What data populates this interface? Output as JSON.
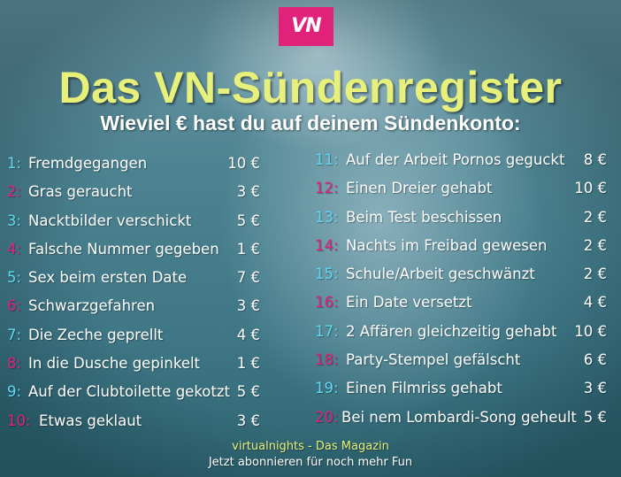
{
  "logo": "VN",
  "title": "Das VN-Sündenregister",
  "subtitle": "Wieviel € hast du auf deinem Sündenkonto:",
  "left_items": [
    {
      "num": "1:",
      "label": "Fremdgegangen",
      "amount": "10 €",
      "num_color": "blue"
    },
    {
      "num": "2:",
      "label": "Gras geraucht",
      "amount": "3 €",
      "num_color": "pink"
    },
    {
      "num": "3:",
      "label": "Nacktbilder verschickt",
      "amount": "5 €",
      "num_color": "blue"
    },
    {
      "num": "4:",
      "label": "Falsche Nummer gegeben",
      "amount": "1 €",
      "num_color": "pink"
    },
    {
      "num": "5:",
      "label": "Sex beim ersten Date",
      "amount": "7 €",
      "num_color": "blue"
    },
    {
      "num": "6:",
      "label": "Schwarzgefahren",
      "amount": "3 €",
      "num_color": "pink"
    },
    {
      "num": "7:",
      "label": "Die Zeche geprellt",
      "amount": "4 €",
      "num_color": "blue"
    },
    {
      "num": "8:",
      "label": "In die Dusche gepinkelt",
      "amount": "1 €",
      "num_color": "pink"
    },
    {
      "num": "9:",
      "label": "Auf der Clubtoilette gekotzt",
      "amount": "5 €",
      "num_color": "blue"
    },
    {
      "num": "10:",
      "label": "Etwas geklaut",
      "amount": "3 €",
      "num_color": "pink"
    }
  ],
  "right_items": [
    {
      "num": "11:",
      "label": "Auf der Arbeit Pornos geguckt",
      "amount": "8 €",
      "num_color": "blue"
    },
    {
      "num": "12:",
      "label": "Einen Dreier gehabt",
      "amount": "10 €",
      "num_color": "pink"
    },
    {
      "num": "13:",
      "label": "Beim Test beschissen",
      "amount": "2 €",
      "num_color": "blue"
    },
    {
      "num": "14:",
      "label": "Nachts im Freibad gewesen",
      "amount": "2 €",
      "num_color": "pink"
    },
    {
      "num": "15:",
      "label": "Schule/Arbeit geschwänzt",
      "amount": "2 €",
      "num_color": "blue"
    },
    {
      "num": "16:",
      "label": "Ein Date versetzt",
      "amount": "4 €",
      "num_color": "pink"
    },
    {
      "num": "17:",
      "label": "2 Affären gleichzeitig gehabt",
      "amount": "10 €",
      "num_color": "blue"
    },
    {
      "num": "18:",
      "label": "Party-Stempel gefälscht",
      "amount": "6 €",
      "num_color": "pink"
    },
    {
      "num": "19:",
      "label": "Einen Filmriss gehabt",
      "amount": "3 €",
      "num_color": "blue"
    },
    {
      "num": "20:",
      "label": "Bei nem Lombardi-Song geheult",
      "amount": "5 €",
      "num_color": "pink"
    }
  ],
  "footer": {
    "line1": "virtualnights - Das Magazin",
    "line2": "Jetzt abonnieren für noch mehr Fun"
  }
}
